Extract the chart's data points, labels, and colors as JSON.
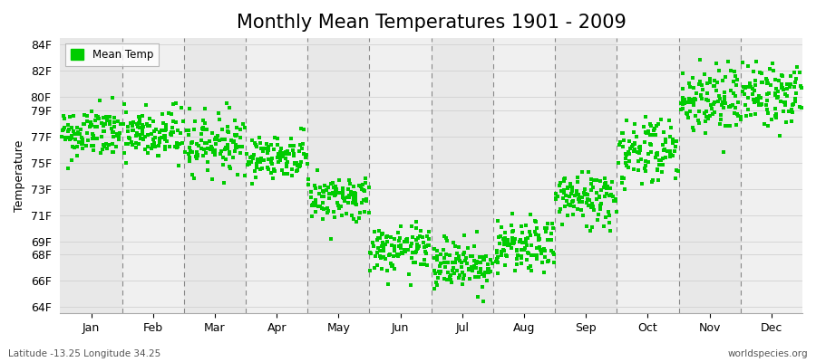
{
  "title": "Monthly Mean Temperatures 1901 - 2009",
  "ylabel": "Temperature",
  "xlabel_months": [
    "Jan",
    "Feb",
    "Mar",
    "Apr",
    "May",
    "Jun",
    "Jul",
    "Aug",
    "Sep",
    "Oct",
    "Nov",
    "Dec"
  ],
  "ylim": [
    63.5,
    84.5
  ],
  "ytick_positions": [
    64,
    66,
    68,
    69,
    71,
    73,
    75,
    77,
    79,
    80,
    82,
    84
  ],
  "ytick_labels": [
    "64F",
    "66F",
    "68F",
    "69F",
    "71F",
    "73F",
    "75F",
    "77F",
    "79F",
    "80F",
    "82F",
    "84F"
  ],
  "marker_color": "#00CC00",
  "legend_label": "Mean Temp",
  "subtitle": "Latitude -13.25 Longitude 34.25",
  "watermark": "worldspecies.org",
  "title_fontsize": 15,
  "label_fontsize": 9,
  "monthly_means": [
    77.2,
    77.1,
    76.5,
    75.5,
    72.3,
    68.3,
    67.3,
    68.5,
    72.3,
    76.0,
    79.8,
    80.2
  ],
  "monthly_stds": [
    1.0,
    1.1,
    1.1,
    0.8,
    0.9,
    0.9,
    1.0,
    1.0,
    1.1,
    1.4,
    1.4,
    1.2
  ],
  "n_years": 109,
  "seed": 42,
  "band_colors": [
    "#e8e8e8",
    "#f0f0f0"
  ],
  "grid_color": "#cccccc",
  "dashed_line_color": "#888888"
}
